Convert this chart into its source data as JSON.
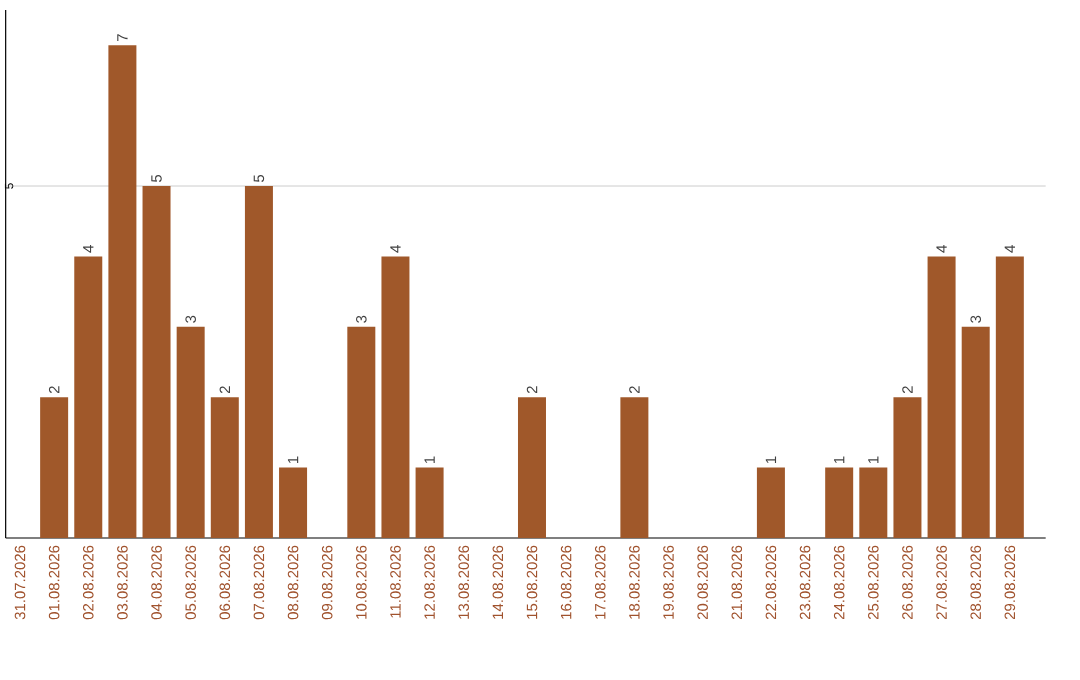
{
  "chart_data": {
    "type": "bar",
    "categories": [
      "31.07.2026",
      "01.08.2026",
      "02.08.2026",
      "03.08.2026",
      "04.08.2026",
      "05.08.2026",
      "06.08.2026",
      "07.08.2026",
      "08.08.2026",
      "09.08.2026",
      "10.08.2026",
      "11.08.2026",
      "12.08.2026",
      "13.08.2026",
      "14.08.2026",
      "15.08.2026",
      "16.08.2026",
      "17.08.2026",
      "18.08.2026",
      "19.08.2026",
      "20.08.2026",
      "21.08.2026",
      "22.08.2026",
      "23.08.2026",
      "24.08.2026",
      "25.08.2026",
      "26.08.2026",
      "27.08.2026",
      "28.08.2026",
      "29.08.2026"
    ],
    "values": [
      0,
      2,
      4,
      7,
      5,
      3,
      2,
      5,
      1,
      0,
      3,
      4,
      1,
      0,
      0,
      2,
      0,
      0,
      2,
      0,
      0,
      0,
      1,
      0,
      1,
      1,
      2,
      4,
      3,
      4
    ],
    "value_labels": [
      null,
      "2",
      "4",
      "7",
      "5",
      "3",
      "2",
      "5",
      "1",
      null,
      "3",
      "4",
      "1",
      null,
      null,
      "2",
      null,
      null,
      "2",
      null,
      null,
      null,
      "1",
      null,
      "1",
      "1",
      "2",
      "4",
      "3",
      "4"
    ],
    "color": "#a0582a",
    "ylim": [
      0,
      7.5
    ],
    "yticks": [
      5
    ],
    "grid": "y"
  }
}
